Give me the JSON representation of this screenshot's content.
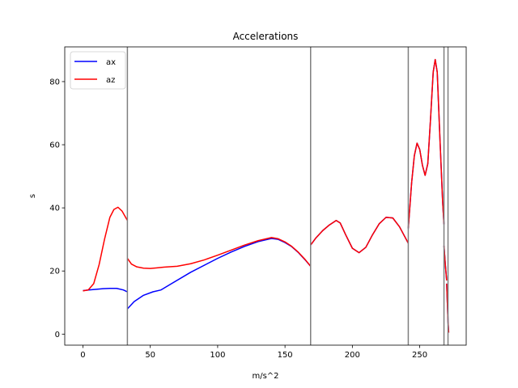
{
  "chart_data": {
    "type": "line",
    "title": "Accelerations",
    "xlabel": "m/s^2",
    "ylabel": "s",
    "xlim": [
      -13.5,
      284.5
    ],
    "ylim": [
      -3.5,
      91
    ],
    "xticks": [
      0,
      50,
      100,
      150,
      200,
      250
    ],
    "yticks": [
      0,
      20,
      40,
      60,
      80
    ],
    "legend_position": "top-left",
    "grid": false,
    "colors": {
      "ax": "#0000ff",
      "az": "#ff0000",
      "vline": "#7f7f7f",
      "axes": "#000000"
    },
    "vertical_lines": [
      33,
      169,
      241.5,
      268,
      271
    ],
    "series": [
      {
        "name": "ax",
        "segments": [
          [
            [
              0,
              13.8
            ],
            [
              5,
              14.0
            ],
            [
              10,
              14.2
            ],
            [
              15,
              14.4
            ],
            [
              20,
              14.5
            ],
            [
              25,
              14.5
            ],
            [
              30,
              14.0
            ],
            [
              33,
              13.4
            ]
          ],
          [
            [
              33,
              8.0
            ],
            [
              38,
              10.3
            ],
            [
              45,
              12.3
            ],
            [
              52,
              13.4
            ],
            [
              58,
              14.0
            ],
            [
              65,
              15.8
            ],
            [
              80,
              19.6
            ],
            [
              100,
              24.0
            ],
            [
              110,
              26.0
            ],
            [
              120,
              27.8
            ],
            [
              130,
              29.3
            ],
            [
              140,
              30.3
            ],
            [
              145,
              30.0
            ],
            [
              150,
              29.0
            ],
            [
              155,
              27.7
            ],
            [
              160,
              25.8
            ],
            [
              165,
              23.5
            ],
            [
              169,
              21.5
            ]
          ],
          [
            [
              169,
              28.2
            ],
            [
              173,
              30.5
            ],
            [
              178,
              32.8
            ],
            [
              183,
              34.6
            ],
            [
              188,
              36.0
            ],
            [
              191,
              35.2
            ],
            [
              195,
              31.5
            ],
            [
              200,
              27.2
            ],
            [
              205,
              25.8
            ],
            [
              210,
              27.5
            ],
            [
              215,
              31.5
            ],
            [
              220,
              35.0
            ],
            [
              225,
              37.0
            ],
            [
              230,
              36.8
            ],
            [
              235,
              34.0
            ],
            [
              240,
              30.0
            ],
            [
              241.5,
              28.8
            ]
          ],
          [
            [
              241.5,
              33.5
            ],
            [
              244,
              48.0
            ],
            [
              246,
              56.5
            ],
            [
              248,
              60.5
            ],
            [
              250,
              58.5
            ],
            [
              252,
              53.5
            ],
            [
              254,
              50.3
            ],
            [
              256,
              54.0
            ],
            [
              258,
              68.0
            ],
            [
              260,
              83.0
            ],
            [
              261.5,
              87.0
            ],
            [
              263,
              83.0
            ],
            [
              265,
              62.0
            ],
            [
              267,
              42.0
            ],
            [
              268,
              34.8
            ]
          ],
          [
            [
              268,
              28.0
            ],
            [
              269,
              22.0
            ],
            [
              270,
              17.0
            ]
          ],
          [
            [
              270,
              16.0
            ],
            [
              270.5,
              10.0
            ],
            [
              271,
              4.0
            ],
            [
              271.5,
              0.5
            ]
          ]
        ]
      },
      {
        "name": "az",
        "segments": [
          [
            [
              0,
              13.7
            ],
            [
              4,
              14.0
            ],
            [
              8,
              16.0
            ],
            [
              12,
              22.0
            ],
            [
              16,
              30.0
            ],
            [
              20,
              37.0
            ],
            [
              23,
              39.5
            ],
            [
              26,
              40.2
            ],
            [
              29,
              39.0
            ],
            [
              31,
              37.5
            ],
            [
              33,
              36.0
            ]
          ],
          [
            [
              33,
              24.0
            ],
            [
              36,
              22.2
            ],
            [
              40,
              21.3
            ],
            [
              45,
              20.9
            ],
            [
              50,
              20.8
            ],
            [
              55,
              21.0
            ],
            [
              60,
              21.2
            ],
            [
              70,
              21.5
            ],
            [
              80,
              22.3
            ],
            [
              90,
              23.5
            ],
            [
              100,
              25.0
            ],
            [
              110,
              26.6
            ],
            [
              120,
              28.2
            ],
            [
              130,
              29.6
            ],
            [
              140,
              30.6
            ],
            [
              145,
              30.2
            ],
            [
              150,
              29.2
            ],
            [
              155,
              27.8
            ],
            [
              160,
              25.9
            ],
            [
              165,
              23.6
            ],
            [
              169,
              21.5
            ]
          ],
          [
            [
              169,
              28.2
            ],
            [
              173,
              30.5
            ],
            [
              178,
              32.8
            ],
            [
              183,
              34.6
            ],
            [
              188,
              36.0
            ],
            [
              191,
              35.2
            ],
            [
              195,
              31.5
            ],
            [
              200,
              27.2
            ],
            [
              205,
              25.8
            ],
            [
              210,
              27.5
            ],
            [
              215,
              31.5
            ],
            [
              220,
              35.0
            ],
            [
              225,
              37.0
            ],
            [
              230,
              36.8
            ],
            [
              235,
              34.0
            ],
            [
              240,
              30.0
            ],
            [
              241.5,
              28.8
            ]
          ],
          [
            [
              241.5,
              33.5
            ],
            [
              244,
              48.0
            ],
            [
              246,
              56.5
            ],
            [
              248,
              60.5
            ],
            [
              250,
              58.5
            ],
            [
              252,
              53.5
            ],
            [
              254,
              50.3
            ],
            [
              256,
              54.0
            ],
            [
              258,
              68.0
            ],
            [
              260,
              83.0
            ],
            [
              261.5,
              87.0
            ],
            [
              263,
              83.0
            ],
            [
              265,
              62.0
            ],
            [
              267,
              42.0
            ],
            [
              268,
              34.8
            ]
          ],
          [
            [
              268,
              28.0
            ],
            [
              269,
              22.0
            ],
            [
              270,
              17.0
            ]
          ],
          [
            [
              270,
              16.0
            ],
            [
              270.5,
              10.0
            ],
            [
              271,
              4.0
            ],
            [
              271.5,
              0.5
            ]
          ]
        ]
      }
    ]
  }
}
